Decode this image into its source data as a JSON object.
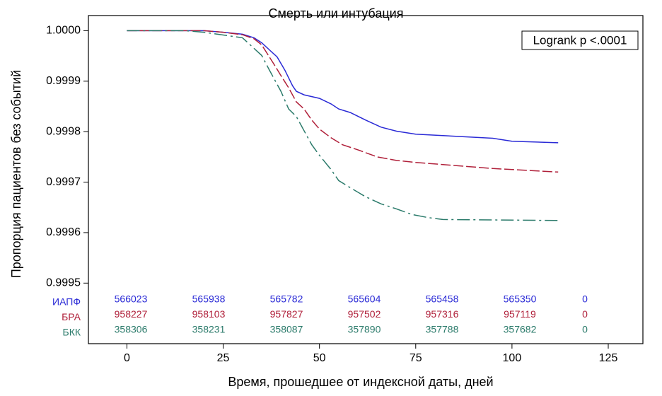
{
  "chart_data": {
    "type": "step",
    "title": "Смерть или интубация",
    "x_label": "Время, прошедшее от индексной даты, дней",
    "y_label": "Пропорция пациентов без событий",
    "annotation": "Logrank p <.0001",
    "xlim": [
      -10,
      134
    ],
    "xticks": [
      0,
      25,
      50,
      75,
      100,
      125
    ],
    "ylim": [
      0.99938,
      1.00003
    ],
    "yticks": [
      {
        "value": 1,
        "label": "1.0000"
      },
      0.9999,
      0.9998,
      0.9997,
      0.9996,
      0.9995
    ],
    "grid": false,
    "series": [
      {
        "name": "ИАПФ",
        "color": "#2a2ad6",
        "dash": "none",
        "x": [
          0,
          20,
          25,
          30,
          33,
          35,
          37,
          39,
          41,
          43,
          44,
          46,
          50,
          53,
          55,
          58,
          62,
          66,
          70,
          75,
          85,
          95,
          100,
          112
        ],
        "values": [
          1,
          1,
          0.999997,
          0.999993,
          0.999986,
          0.999976,
          0.999962,
          0.999948,
          0.999922,
          0.999891,
          0.99988,
          0.999873,
          0.999866,
          0.999855,
          0.999845,
          0.999838,
          0.999823,
          0.999809,
          0.999801,
          0.999795,
          0.999791,
          0.999787,
          0.999781,
          0.999778
        ],
        "at_risk": [
          566023,
          565938,
          565782,
          565604,
          565458,
          565350,
          0
        ]
      },
      {
        "name": "БРА",
        "color": "#b0203a",
        "dash": "14 4",
        "x": [
          0,
          20,
          25,
          30,
          33,
          35,
          38,
          40,
          42,
          44,
          46,
          48,
          50,
          53,
          56,
          60,
          65,
          70,
          75,
          85,
          95,
          112
        ],
        "values": [
          1,
          1,
          0.999997,
          0.999992,
          0.999984,
          0.999972,
          0.999936,
          0.999911,
          0.999887,
          0.999859,
          0.999845,
          0.999823,
          0.999805,
          0.999788,
          0.999774,
          0.999764,
          0.99975,
          0.999743,
          0.999739,
          0.999733,
          0.999727,
          0.99972
        ],
        "at_risk": [
          958227,
          958103,
          957827,
          957502,
          957316,
          957119,
          0
        ]
      },
      {
        "name": "БКК",
        "color": "#2a7a6a",
        "dash": "18 5 3 5",
        "x": [
          0,
          15,
          20,
          30,
          35,
          37,
          40,
          42,
          44,
          46,
          48,
          50,
          53,
          55,
          58,
          62,
          66,
          70,
          74,
          78,
          82,
          112
        ],
        "values": [
          1,
          1,
          0.999997,
          0.999986,
          0.999951,
          0.999922,
          0.99988,
          0.999845,
          0.99983,
          0.999802,
          0.999774,
          0.999753,
          0.999725,
          0.999703,
          0.999689,
          0.999671,
          0.999657,
          0.999647,
          0.999636,
          0.99963,
          0.999626,
          0.999624
        ],
        "at_risk": [
          358306,
          358231,
          358087,
          357890,
          357788,
          357682,
          0
        ]
      }
    ]
  }
}
